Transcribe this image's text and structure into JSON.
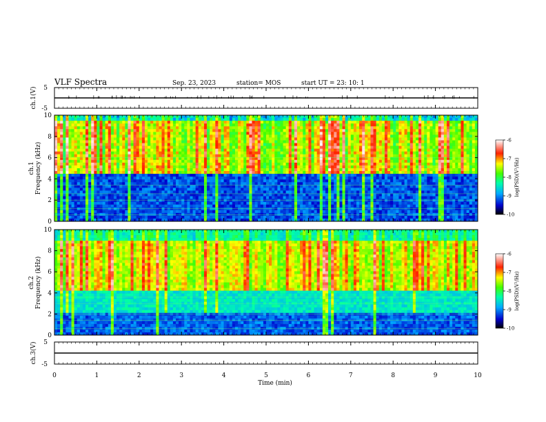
{
  "header": {
    "title": "VLF Spectra",
    "date": "Sep. 23, 2023",
    "station": "station= MOS",
    "start": "start UT =   23: 10: 1"
  },
  "chart_data": [
    {
      "type": "line",
      "panel": "ch1-waveform",
      "ylabel": "ch.1(V)",
      "ylim": [
        -5,
        5
      ],
      "yticks": [
        "5",
        "-5"
      ],
      "x": [
        0,
        10
      ],
      "values": [
        0,
        0
      ],
      "color": "#000000"
    },
    {
      "type": "heatmap",
      "panel": "ch1-spectrogram",
      "ylabel": "ch.1\nFrequency (kHz)",
      "xlim": [
        0,
        10
      ],
      "ylim": [
        0,
        10
      ],
      "yticks": [
        "0",
        "2",
        "4",
        "6",
        "8",
        "10"
      ],
      "colorbar": {
        "label": "log(PSD)(V²/Hz)",
        "range": [
          -10,
          -6
        ],
        "ticks": [
          "-6",
          "-7",
          "-8",
          "-9",
          "-10"
        ]
      }
    },
    {
      "type": "heatmap",
      "panel": "ch2-spectrogram",
      "ylabel": "ch.2\nFrequency (kHz)",
      "xlim": [
        0,
        10
      ],
      "ylim": [
        0,
        10
      ],
      "yticks": [
        "0",
        "2",
        "4",
        "6",
        "8",
        "10"
      ],
      "colorbar": {
        "label": "log(PSD)(V²/Hz)",
        "range": [
          -10,
          -6
        ],
        "ticks": [
          "-6",
          "-7",
          "-8",
          "-9",
          "-10"
        ]
      }
    },
    {
      "type": "line",
      "panel": "ch3-waveform",
      "ylabel": "ch.3(V)",
      "ylim": [
        -5,
        5
      ],
      "yticks": [
        "5",
        "-5"
      ],
      "x": [
        0,
        10
      ],
      "values": [
        0,
        0
      ],
      "color": "#000000"
    }
  ],
  "xaxis": {
    "label": "Time (min)",
    "ticks": [
      "0",
      "1",
      "2",
      "3",
      "4",
      "5",
      "6",
      "7",
      "8",
      "9",
      "10"
    ],
    "range": [
      0,
      10
    ]
  }
}
